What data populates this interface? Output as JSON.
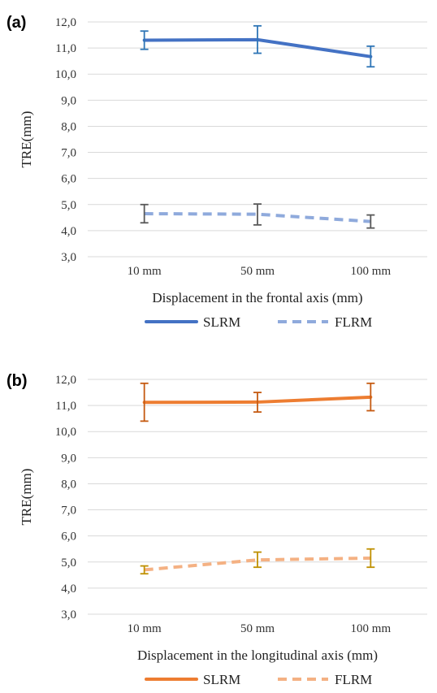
{
  "chart_data": [
    {
      "type": "line",
      "panel_label": "(a)",
      "categories": [
        "10 mm",
        "50 mm",
        "100 mm"
      ],
      "xlabel": "Displacement in the frontal axis (mm)",
      "ylabel": "TRE(mm)",
      "ylim": [
        3.0,
        12.0
      ],
      "yticks": [
        "3,0",
        "4,0",
        "5,0",
        "6,0",
        "7,0",
        "8,0",
        "9,0",
        "10,0",
        "11,0",
        "12,0"
      ],
      "grid": true,
      "legend": "bottom",
      "series": [
        {
          "name": "SLRM",
          "values": [
            11.3,
            11.32,
            10.67
          ],
          "err_low": [
            10.95,
            10.8,
            10.28
          ],
          "err_high": [
            11.65,
            11.85,
            11.07
          ],
          "color": "#4472C4",
          "err_color": "#2E75B6",
          "dash": false
        },
        {
          "name": "FLRM",
          "values": [
            4.65,
            4.63,
            4.35
          ],
          "err_low": [
            4.3,
            4.22,
            4.1
          ],
          "err_high": [
            5.0,
            5.02,
            4.6
          ],
          "color": "#8FAADC",
          "err_color": "#595959",
          "dash": true
        }
      ]
    },
    {
      "type": "line",
      "panel_label": "(b)",
      "categories": [
        "10 mm",
        "50 mm",
        "100 mm"
      ],
      "xlabel": "Displacement in the longitudinal axis (mm)",
      "ylabel": "TRE(mm)",
      "ylim": [
        3.0,
        12.0
      ],
      "yticks": [
        "3,0",
        "4,0",
        "5,0",
        "6,0",
        "7,0",
        "8,0",
        "9,0",
        "10,0",
        "11,0",
        "12,0"
      ],
      "grid": true,
      "legend": "bottom",
      "series": [
        {
          "name": "SLRM",
          "values": [
            11.12,
            11.13,
            11.32
          ],
          "err_low": [
            10.4,
            10.75,
            10.8
          ],
          "err_high": [
            11.85,
            11.5,
            11.85
          ],
          "color": "#ED7D31",
          "err_color": "#C55A11",
          "dash": false
        },
        {
          "name": "FLRM",
          "values": [
            4.7,
            5.08,
            5.15
          ],
          "err_low": [
            4.55,
            4.8,
            4.8
          ],
          "err_high": [
            4.85,
            5.38,
            5.5
          ],
          "color": "#F4B183",
          "err_color": "#BF9000",
          "dash": true
        }
      ]
    }
  ]
}
